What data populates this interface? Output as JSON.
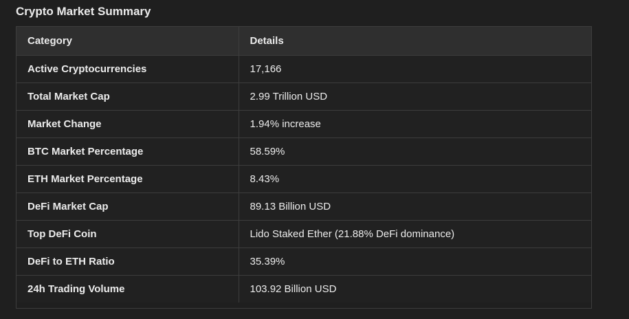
{
  "title": "Crypto Market Summary",
  "table": {
    "headers": [
      "Category",
      "Details"
    ],
    "rows": [
      {
        "category": "Active Cryptocurrencies",
        "details": "17,166"
      },
      {
        "category": "Total Market Cap",
        "details": "2.99 Trillion USD"
      },
      {
        "category": "Market Change",
        "details": "1.94% increase"
      },
      {
        "category": "BTC Market Percentage",
        "details": "58.59%"
      },
      {
        "category": "ETH Market Percentage",
        "details": "8.43%"
      },
      {
        "category": "DeFi Market Cap",
        "details": "89.13 Billion USD"
      },
      {
        "category": "Top DeFi Coin",
        "details": "Lido Staked Ether (21.88% DeFi dominance)"
      },
      {
        "category": "DeFi to ETH Ratio",
        "details": "35.39%"
      },
      {
        "category": "24h Trading Volume",
        "details": "103.92 Billion USD"
      }
    ]
  },
  "colors": {
    "background": "#1f1f1f",
    "header_background": "#2f2f2f",
    "row_background": "#212121",
    "border": "#3d3d3d",
    "text": "#ececec"
  }
}
